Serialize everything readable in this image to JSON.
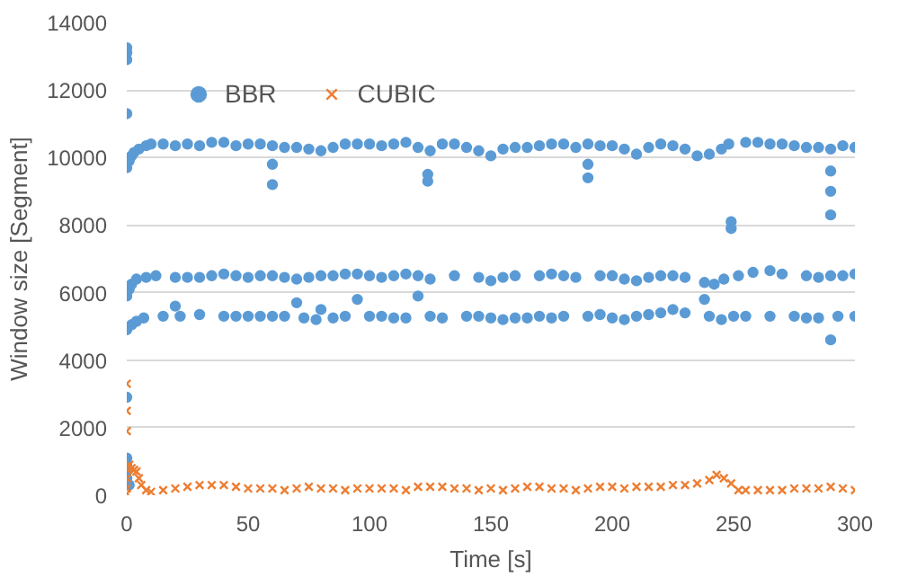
{
  "chart_data": {
    "type": "scatter",
    "xlabel": "Time [s]",
    "ylabel": "Window size [Segment]",
    "xlim": [
      0,
      300
    ],
    "xticks": [
      0,
      50,
      100,
      150,
      200,
      250,
      300
    ],
    "ylim": [
      0,
      14000
    ],
    "yticks": [
      0,
      2000,
      4000,
      6000,
      8000,
      10000,
      12000,
      14000
    ],
    "grid": "y",
    "legend": "top left",
    "series": [
      {
        "name": "BBR",
        "color": "#5b9bd5",
        "marker": "circle",
        "x": [
          0,
          1,
          2,
          3,
          5,
          8,
          10,
          15,
          20,
          25,
          30,
          35,
          40,
          45,
          50,
          55,
          60,
          65,
          70,
          75,
          80,
          85,
          90,
          95,
          100,
          105,
          110,
          115,
          120,
          125,
          130,
          135,
          140,
          145,
          150,
          155,
          160,
          165,
          170,
          175,
          180,
          185,
          190,
          195,
          200,
          205,
          210,
          215,
          220,
          225,
          230,
          235,
          240,
          245,
          248,
          255,
          260,
          265,
          270,
          275,
          280,
          285,
          290,
          295,
          300,
          0,
          0,
          0,
          0,
          60,
          60,
          124,
          124,
          190,
          190,
          249,
          249,
          290,
          290,
          290,
          0,
          1,
          2,
          4,
          8,
          12,
          20,
          25,
          30,
          35,
          40,
          45,
          50,
          55,
          60,
          65,
          70,
          75,
          80,
          85,
          90,
          95,
          100,
          105,
          110,
          115,
          120,
          125,
          135,
          145,
          150,
          155,
          160,
          170,
          175,
          180,
          185,
          195,
          200,
          205,
          210,
          215,
          220,
          225,
          230,
          238,
          242,
          246,
          252,
          258,
          265,
          270,
          280,
          285,
          290,
          295,
          300,
          0,
          2,
          4,
          7,
          15,
          20,
          22,
          30,
          40,
          45,
          50,
          55,
          60,
          65,
          70,
          73,
          78,
          80,
          85,
          90,
          95,
          100,
          105,
          110,
          115,
          120,
          125,
          130,
          140,
          145,
          150,
          155,
          160,
          165,
          170,
          175,
          180,
          190,
          195,
          200,
          205,
          210,
          215,
          220,
          225,
          230,
          238,
          240,
          245,
          250,
          255,
          265,
          275,
          280,
          285,
          290,
          293,
          300,
          0,
          0,
          0,
          0,
          0,
          1
        ],
        "values": [
          9700,
          9900,
          10050,
          10150,
          10250,
          10350,
          10400,
          10400,
          10350,
          10400,
          10350,
          10450,
          10450,
          10350,
          10400,
          10400,
          10350,
          10300,
          10300,
          10250,
          10200,
          10300,
          10400,
          10400,
          10400,
          10350,
          10400,
          10450,
          10300,
          10200,
          10400,
          10400,
          10300,
          10200,
          10050,
          10250,
          10300,
          10300,
          10350,
          10400,
          10400,
          10300,
          10400,
          10350,
          10350,
          10250,
          10100,
          10300,
          10400,
          10350,
          10250,
          10050,
          10100,
          10250,
          10400,
          10450,
          10450,
          10400,
          10400,
          10350,
          10300,
          10300,
          10250,
          10350,
          10300,
          13250,
          13100,
          12900,
          11300,
          9800,
          9200,
          9500,
          9300,
          9800,
          9400,
          8100,
          7900,
          9600,
          9000,
          8300,
          5900,
          6100,
          6250,
          6400,
          6450,
          6500,
          6450,
          6450,
          6450,
          6500,
          6550,
          6500,
          6450,
          6500,
          6500,
          6450,
          6400,
          6450,
          6500,
          6500,
          6550,
          6550,
          6500,
          6450,
          6500,
          6550,
          6500,
          6400,
          6500,
          6450,
          6350,
          6450,
          6500,
          6500,
          6550,
          6500,
          6450,
          6500,
          6500,
          6400,
          6350,
          6450,
          6500,
          6500,
          6450,
          6300,
          6250,
          6400,
          6500,
          6600,
          6650,
          6550,
          6500,
          6450,
          6500,
          6500,
          6550,
          4900,
          5050,
          5150,
          5250,
          5300,
          5600,
          5300,
          5350,
          5300,
          5300,
          5300,
          5300,
          5300,
          5300,
          5700,
          5250,
          5200,
          5500,
          5250,
          5300,
          5800,
          5300,
          5300,
          5250,
          5250,
          5900,
          5300,
          5250,
          5300,
          5300,
          5250,
          5200,
          5250,
          5250,
          5300,
          5250,
          5300,
          5300,
          5350,
          5250,
          5200,
          5300,
          5350,
          5400,
          5500,
          5400,
          5800,
          5300,
          5200,
          5300,
          5300,
          5300,
          5300,
          5250,
          5250,
          4600,
          5300,
          5300,
          2900,
          1100,
          900,
          700,
          500,
          300
        ]
      },
      {
        "name": "CUBIC",
        "color": "#ed7d31",
        "marker": "cross",
        "x": [
          0,
          0,
          0,
          0,
          0,
          0,
          0,
          1,
          2,
          3,
          4,
          5,
          6,
          8,
          10,
          15,
          20,
          25,
          30,
          35,
          40,
          45,
          50,
          55,
          60,
          65,
          70,
          75,
          80,
          85,
          90,
          95,
          100,
          105,
          110,
          115,
          120,
          125,
          130,
          135,
          140,
          145,
          150,
          155,
          160,
          165,
          170,
          175,
          180,
          185,
          190,
          195,
          200,
          205,
          210,
          215,
          220,
          225,
          230,
          235,
          240,
          243,
          246,
          249,
          252,
          255,
          260,
          265,
          270,
          275,
          280,
          285,
          290,
          295,
          300
        ],
        "values": [
          3300,
          2500,
          1900,
          800,
          500,
          200,
          50,
          900,
          800,
          750,
          700,
          500,
          300,
          150,
          100,
          150,
          200,
          250,
          300,
          300,
          300,
          250,
          200,
          200,
          200,
          150,
          200,
          250,
          200,
          200,
          150,
          200,
          200,
          200,
          200,
          150,
          250,
          250,
          250,
          200,
          200,
          150,
          200,
          150,
          200,
          250,
          250,
          200,
          200,
          150,
          200,
          250,
          250,
          200,
          250,
          250,
          250,
          300,
          300,
          350,
          450,
          600,
          500,
          350,
          150,
          150,
          150,
          150,
          150,
          200,
          200,
          200,
          250,
          200,
          150
        ]
      }
    ]
  }
}
